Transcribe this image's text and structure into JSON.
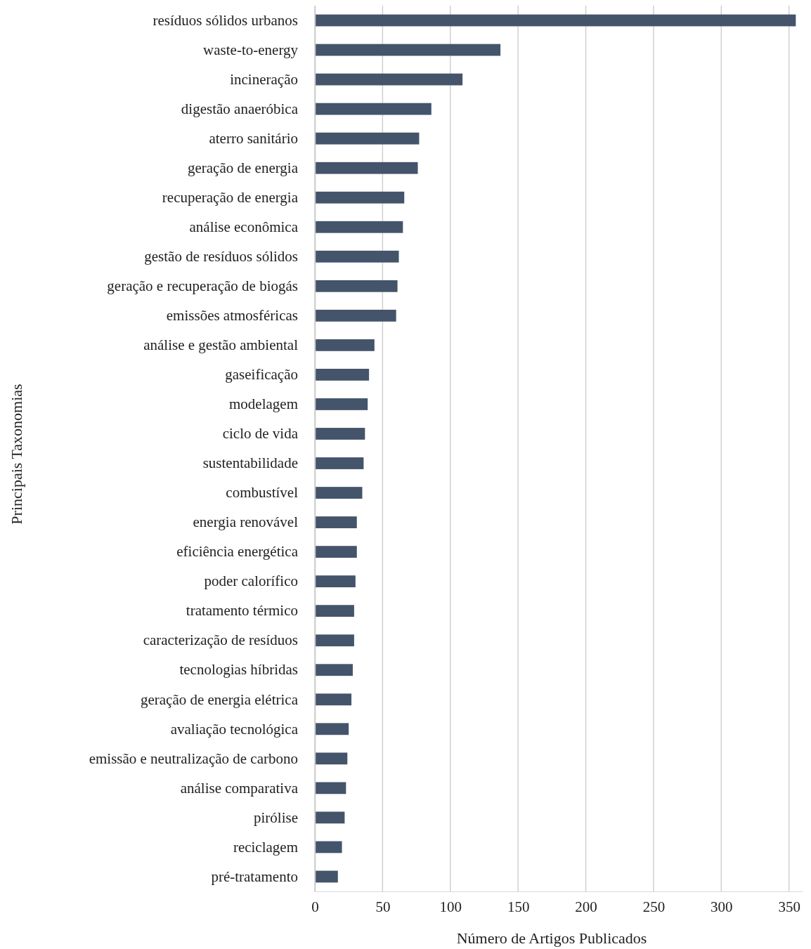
{
  "chart_data": {
    "type": "bar",
    "orientation": "horizontal",
    "xlabel": "Número de Artigos Publicados",
    "ylabel": "Principais Taxonomias",
    "categories": [
      "resíduos sólidos urbanos",
      "waste-to-energy",
      "incineração",
      "digestão anaeróbica",
      "aterro sanitário",
      "geração de energia",
      "recuperação de energia",
      "análise econômica",
      "gestão de resíduos sólidos",
      "geração e recuperação de biogás",
      "emissões atmosféricas",
      "análise e gestão ambiental",
      "gaseificação",
      "modelagem",
      "ciclo de vida",
      "sustentabilidade",
      "combustível",
      "energia renovável",
      "eficiência energética",
      "poder calorífico",
      "tratamento térmico",
      "caracterização de resíduos",
      "tecnologias híbridas",
      "geração de energia elétrica",
      "avaliação tecnológica",
      "emissão e neutralização de carbono",
      "análise comparativa",
      "pirólise",
      "reciclagem",
      "pré-tratamento"
    ],
    "values": [
      355,
      137,
      109,
      86,
      77,
      76,
      66,
      65,
      62,
      61,
      60,
      44,
      40,
      39,
      37,
      36,
      35,
      31,
      31,
      30,
      29,
      29,
      28,
      27,
      25,
      24,
      23,
      22,
      20,
      17
    ],
    "color": "#44546a",
    "xlim": [
      0,
      360
    ],
    "xticks": [
      0,
      50,
      100,
      150,
      200,
      250,
      300,
      350
    ],
    "grid": "x"
  }
}
